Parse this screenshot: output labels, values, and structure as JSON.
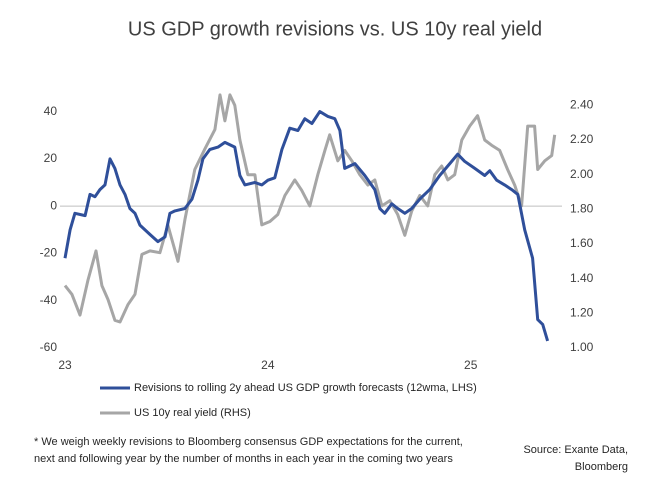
{
  "chart_data": {
    "type": "line",
    "title": "US GDP growth revisions vs. US 10y real yield",
    "xlim": [
      23,
      25.45
    ],
    "xticks": [
      23,
      24,
      25
    ],
    "ylim": [
      -60,
      50
    ],
    "yticks": [
      -60,
      -40,
      -20,
      0,
      20,
      40
    ],
    "y2lim": [
      1.0,
      2.5
    ],
    "y2ticks": [
      {
        "value": 1.0,
        "label": "1.00"
      },
      {
        "value": 1.2,
        "label": "1.20"
      },
      {
        "value": 1.4,
        "label": "1.40"
      },
      {
        "value": 1.6,
        "label": "1.60"
      },
      {
        "value": 1.8,
        "label": "1.80"
      },
      {
        "value": 2.0,
        "label": "2.00"
      },
      {
        "value": 2.2,
        "label": "2.20"
      },
      {
        "value": 2.4,
        "label": "2.40"
      }
    ],
    "legend": "bottom",
    "series": [
      {
        "name": "Revisions to rolling 2y ahead US GDP growth forecasts (12wma, LHS)",
        "color": "#2f4f9a",
        "axis": "y",
        "x": [
          23.0,
          23.025,
          23.049,
          23.099,
          23.123,
          23.148,
          23.172,
          23.197,
          23.222,
          23.246,
          23.271,
          23.296,
          23.32,
          23.345,
          23.369,
          23.419,
          23.458,
          23.493,
          23.517,
          23.542,
          23.591,
          23.626,
          23.655,
          23.68,
          23.714,
          23.754,
          23.788,
          23.837,
          23.862,
          23.887,
          23.936,
          23.97,
          24.0,
          24.034,
          24.069,
          24.108,
          24.148,
          24.182,
          24.217,
          24.256,
          24.296,
          24.33,
          24.355,
          24.379,
          24.429,
          24.478,
          24.527,
          24.552,
          24.576,
          24.611,
          24.64,
          24.675,
          24.709,
          24.749,
          24.798,
          24.847,
          24.897,
          24.936,
          24.97,
          25.02,
          25.069,
          25.094,
          25.128,
          25.167,
          25.202,
          25.232,
          25.266,
          25.305,
          25.33,
          25.355,
          25.379
        ],
        "values": [
          -22,
          -10,
          -3,
          -4,
          5,
          4,
          7,
          9,
          20,
          16,
          9,
          5,
          -1,
          -3,
          -8,
          -12,
          -15,
          -13,
          -3,
          -2,
          -1,
          3,
          11,
          20,
          24,
          25,
          27,
          25,
          13,
          9,
          10,
          9,
          11,
          12,
          24,
          33,
          32,
          37,
          35,
          40,
          38,
          37,
          32,
          16,
          18,
          13,
          7,
          -1,
          -3,
          1,
          -1,
          -3,
          -1,
          3,
          7,
          13,
          18,
          22,
          19,
          16,
          13,
          15,
          11,
          9,
          7,
          5,
          -10,
          -22,
          -48,
          -50,
          -57
        ]
      },
      {
        "name": "US 10y real yield (RHS)",
        "color": "#a6a6a6",
        "axis": "y2",
        "x": [
          23.0,
          23.034,
          23.074,
          23.113,
          23.153,
          23.182,
          23.212,
          23.246,
          23.271,
          23.31,
          23.345,
          23.379,
          23.419,
          23.468,
          23.507,
          23.557,
          23.591,
          23.64,
          23.69,
          23.739,
          23.764,
          23.788,
          23.813,
          23.837,
          23.862,
          23.901,
          23.936,
          23.97,
          24.01,
          24.049,
          24.084,
          24.133,
          24.167,
          24.207,
          24.246,
          24.281,
          24.305,
          24.345,
          24.379,
          24.414,
          24.453,
          24.493,
          24.527,
          24.562,
          24.601,
          24.64,
          24.675,
          24.709,
          24.749,
          24.788,
          24.823,
          24.857,
          24.887,
          24.921,
          24.956,
          24.995,
          25.034,
          25.069,
          25.103,
          25.143,
          25.182,
          25.217,
          25.251,
          25.281,
          25.315,
          25.33,
          25.365,
          25.399,
          25.414
        ],
        "values": [
          1.36,
          1.31,
          1.19,
          1.39,
          1.56,
          1.36,
          1.28,
          1.16,
          1.15,
          1.25,
          1.31,
          1.54,
          1.56,
          1.55,
          1.71,
          1.5,
          1.74,
          2.03,
          2.15,
          2.26,
          2.46,
          2.31,
          2.46,
          2.4,
          2.2,
          2.0,
          2.0,
          1.71,
          1.73,
          1.77,
          1.88,
          1.97,
          1.91,
          1.82,
          2.0,
          2.14,
          2.23,
          2.08,
          2.14,
          2.08,
          2.0,
          1.94,
          1.97,
          1.82,
          1.85,
          1.77,
          1.65,
          1.79,
          1.88,
          1.82,
          2.0,
          2.05,
          1.97,
          2.0,
          2.2,
          2.28,
          2.34,
          2.2,
          2.17,
          2.14,
          2.03,
          1.94,
          1.82,
          2.28,
          2.28,
          2.03,
          2.08,
          2.11,
          2.23
        ]
      }
    ],
    "footnote": [
      "* We weigh weekly revisions to Bloomberg consensus GDP expectations for the current,",
      "next and following year by the number of months in each year in the coming two years"
    ],
    "source": [
      "Source: Exante Data,",
      "Bloomberg"
    ]
  }
}
